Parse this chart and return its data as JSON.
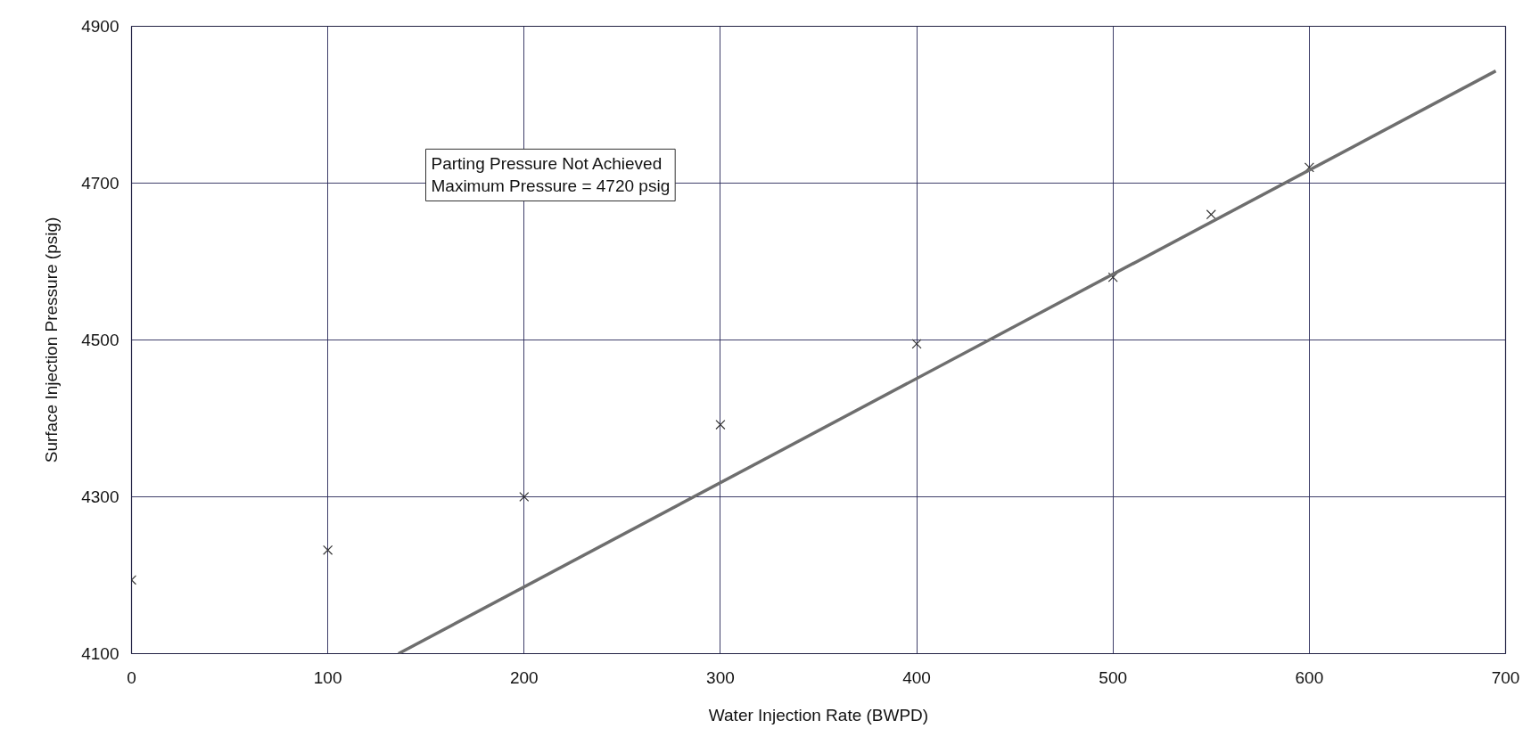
{
  "chart_data": {
    "type": "scatter",
    "xlabel": "Water Injection Rate (BWPD)",
    "ylabel": "Surface Injection Pressure (psig)",
    "xlim": [
      0,
      700
    ],
    "xticks": [
      0,
      100,
      200,
      300,
      400,
      500,
      600,
      700
    ],
    "ylim": [
      4100,
      4900
    ],
    "yticks": [
      4100,
      4300,
      4500,
      4700,
      4900
    ],
    "grid": true,
    "marker": "cross",
    "annotations": [
      "Parting Pressure Not Achieved\nMaximum Pressure = 4720 psig"
    ],
    "series": [
      {
        "color": "#333333",
        "x": [
          0,
          100,
          200,
          300,
          400,
          500,
          550,
          600
        ],
        "values": [
          4194,
          4232,
          4300,
          4392,
          4495,
          4580,
          4660,
          4720
        ]
      },
      {
        "type": "line",
        "marker": "none",
        "color": "#6e6e6e",
        "x": [
          136,
          695
        ],
        "values": [
          4100,
          4843
        ]
      }
    ]
  }
}
